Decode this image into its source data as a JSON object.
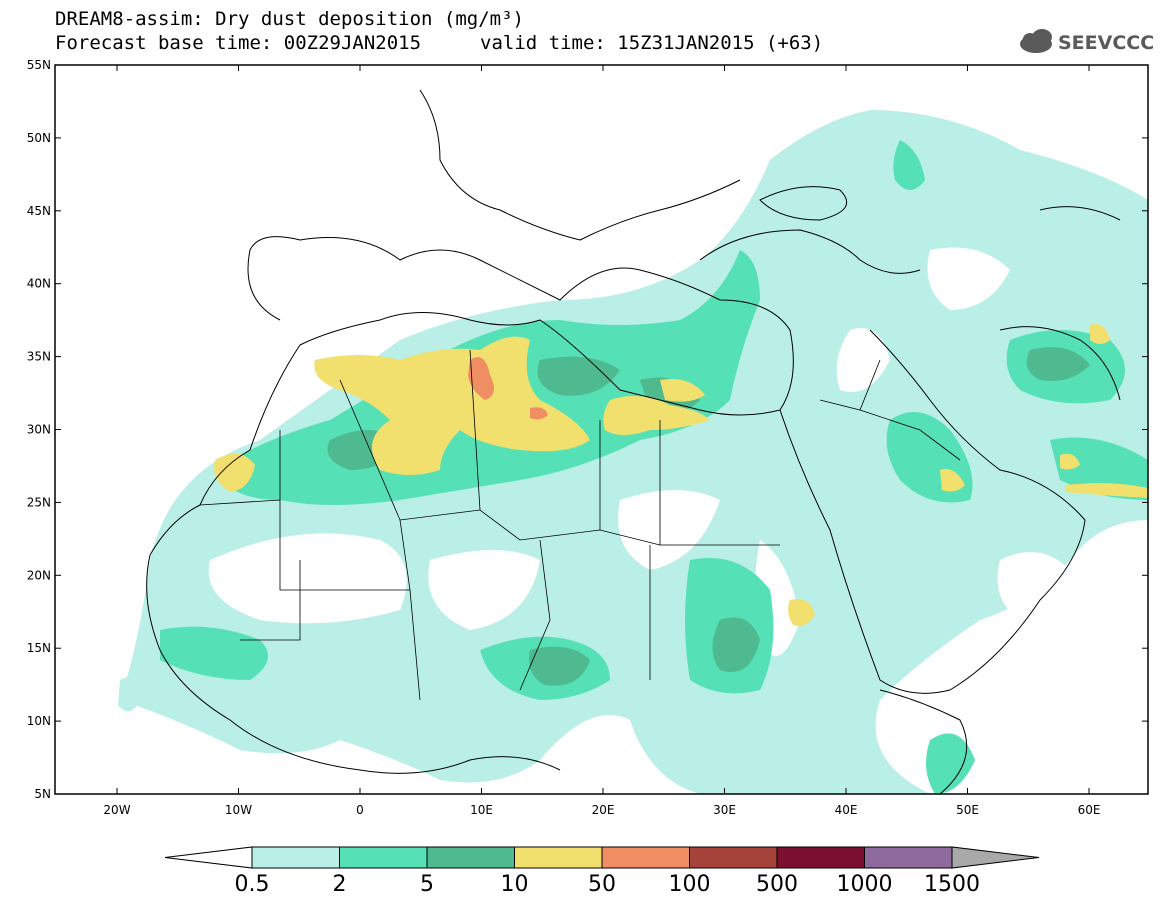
{
  "header": {
    "title": "DREAM8-assim: Dry dust deposition (mg/m³)",
    "base_time": "Forecast base time: 00Z29JAN2015",
    "valid_time": "valid time: 15Z31JAN2015 (+63)",
    "logo_text": "SEEVCCC"
  },
  "axes": {
    "lat_labels": [
      "55N",
      "50N",
      "45N",
      "40N",
      "35N",
      "30N",
      "25N",
      "20N",
      "15N",
      "10N",
      "5N"
    ],
    "lon_labels": [
      "20W",
      "10W",
      "0",
      "10E",
      "20E",
      "30E",
      "40E",
      "50E",
      "60E"
    ]
  },
  "colorbar": {
    "labels": [
      "0.5",
      "2",
      "5",
      "10",
      "50",
      "100",
      "500",
      "1000",
      "1500"
    ],
    "colors": [
      "#b9efe6",
      "#56e0b5",
      "#4fb98f",
      "#f2e06e",
      "#ee8e62",
      "#a5433b",
      "#7a0f2f",
      "#8e6a9e",
      "#a9a9a9"
    ]
  },
  "colors": {
    "land_line": "#000000",
    "ocean": "#ffffff"
  }
}
